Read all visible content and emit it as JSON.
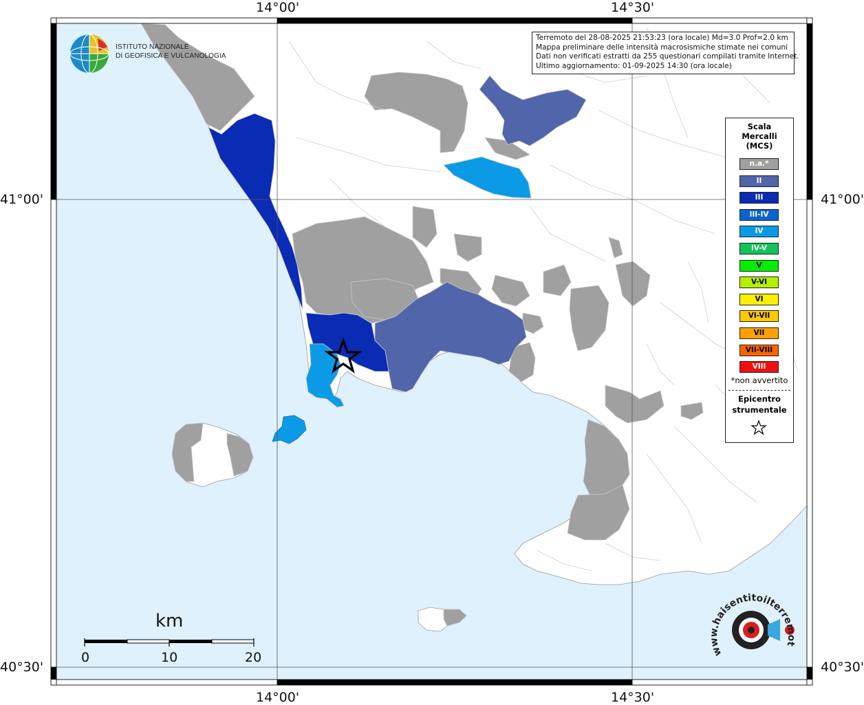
{
  "map": {
    "colors": {
      "sea": "#dff1fc",
      "land": "#ffffff",
      "border": "#c8c8c8",
      "na": "#a0a0a0",
      "intensity_II": "#5165ab",
      "intensity_III": "#0a2bb4",
      "intensity_IV": "#0b9be6"
    },
    "axis_labels": {
      "lon_left": "14°00'",
      "lon_right": "14°30'",
      "lat_top": "41°00'",
      "lat_bottom": "40°30'"
    }
  },
  "info": {
    "line1": "Terremoto del 28-08-2025 21:53:23 (ora locale) Md=3.0 Prof=2.0 km",
    "line2": "Mappa preliminare delle intensità macrosismiche stimate nei comuni",
    "line3": "Dati non verificati estratti da 255 questionari compilati tramite Internet.",
    "line4": "Ultimo aggiornamento: 01-09-2025 14:30 (ora locale)"
  },
  "legend": {
    "title_line1": "Scala",
    "title_line2": "Mercalli",
    "title_line3": "(MCS)",
    "items": [
      {
        "label": "n.a.*",
        "color": "#a0a0a0",
        "text": "#ffffff"
      },
      {
        "label": "II",
        "color": "#5165ab",
        "text": "#ffffff"
      },
      {
        "label": "III",
        "color": "#0a2bb4",
        "text": "#ffffff"
      },
      {
        "label": "III-IV",
        "color": "#0b63d0",
        "text": "#ffffff"
      },
      {
        "label": "IV",
        "color": "#0b9be6",
        "text": "#ffffff"
      },
      {
        "label": "IV-V",
        "color": "#10c45a",
        "text": "#ffffff"
      },
      {
        "label": "V",
        "color": "#00f000",
        "text": "#000000"
      },
      {
        "label": "V-VI",
        "color": "#b4f000",
        "text": "#000000"
      },
      {
        "label": "VI",
        "color": "#fff000",
        "text": "#000000"
      },
      {
        "label": "VI-VII",
        "color": "#ffc800",
        "text": "#000000"
      },
      {
        "label": "VII",
        "color": "#ffa000",
        "text": "#000000"
      },
      {
        "label": "VII-VIII",
        "color": "#ff6400",
        "text": "#000000"
      },
      {
        "label": "VIII",
        "color": "#f01010",
        "text": "#ffffff"
      }
    ],
    "na_note": "*non avvertito",
    "epi_line1": "Epicentro",
    "epi_line2": "strumentale"
  },
  "logo": {
    "line1": "ISTITUTO NAZIONALE",
    "line2": "DI GEOFISICA E VULCANOLOGIA"
  },
  "scale": {
    "unit": "km",
    "ticks": [
      "0",
      "10",
      "20"
    ]
  },
  "hst_logo": {
    "text": "www.haisentitoilterremoto.it"
  }
}
